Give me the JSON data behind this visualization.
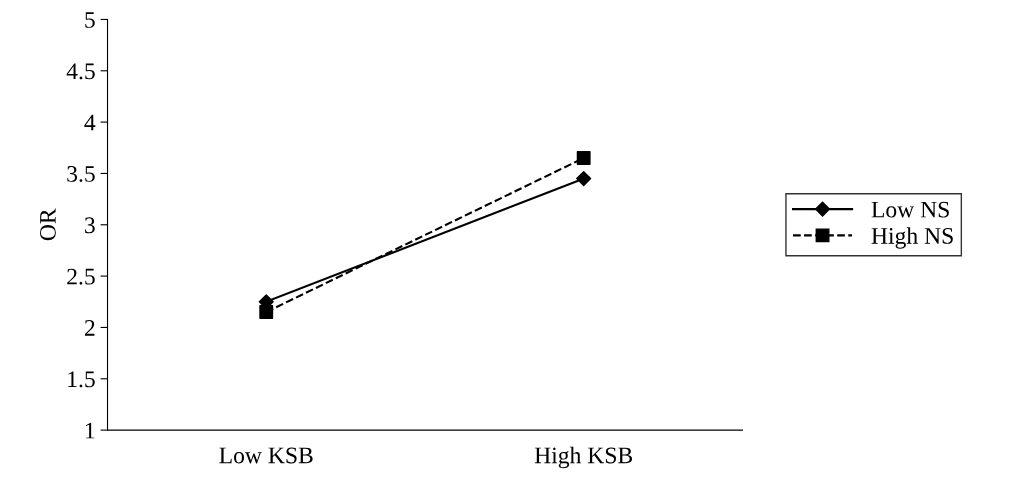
{
  "chart_data": {
    "type": "line",
    "ylabel": "OR",
    "categories": [
      "Low KSB",
      "High KSB"
    ],
    "series": [
      {
        "name": "Low NS",
        "color": "#000000",
        "values": [
          2.25,
          3.45
        ],
        "marker": "diamond",
        "line_style": "solid"
      },
      {
        "name": "High NS",
        "color": "#000000",
        "values": [
          2.15,
          3.65
        ],
        "marker": "square",
        "line_style": "dashed"
      }
    ],
    "ylim": [
      1,
      5
    ],
    "yticks": [
      1,
      1.5,
      2,
      2.5,
      3,
      3.5,
      4,
      4.5,
      5
    ],
    "grid": false,
    "legend": "right"
  }
}
